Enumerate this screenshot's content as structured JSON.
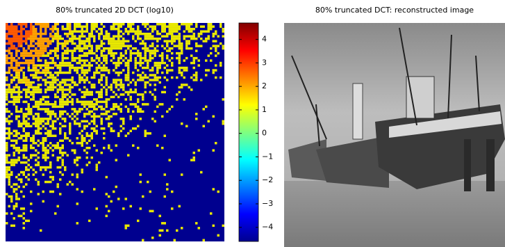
{
  "chart_data": [
    {
      "type": "heatmap",
      "title": "80% truncated 2D DCT (log10)",
      "colorbar": {
        "lim": [
          -4.6,
          4.7
        ],
        "ticks": [
          {
            "value": -4,
            "label": "−4"
          },
          {
            "value": -3,
            "label": "−3"
          },
          {
            "value": -2,
            "label": "−2"
          },
          {
            "value": -1,
            "label": "−1"
          },
          0,
          1,
          2,
          3,
          4
        ]
      }
    },
    {
      "type": "image",
      "title": "80% truncated DCT: reconstructed image"
    }
  ]
}
